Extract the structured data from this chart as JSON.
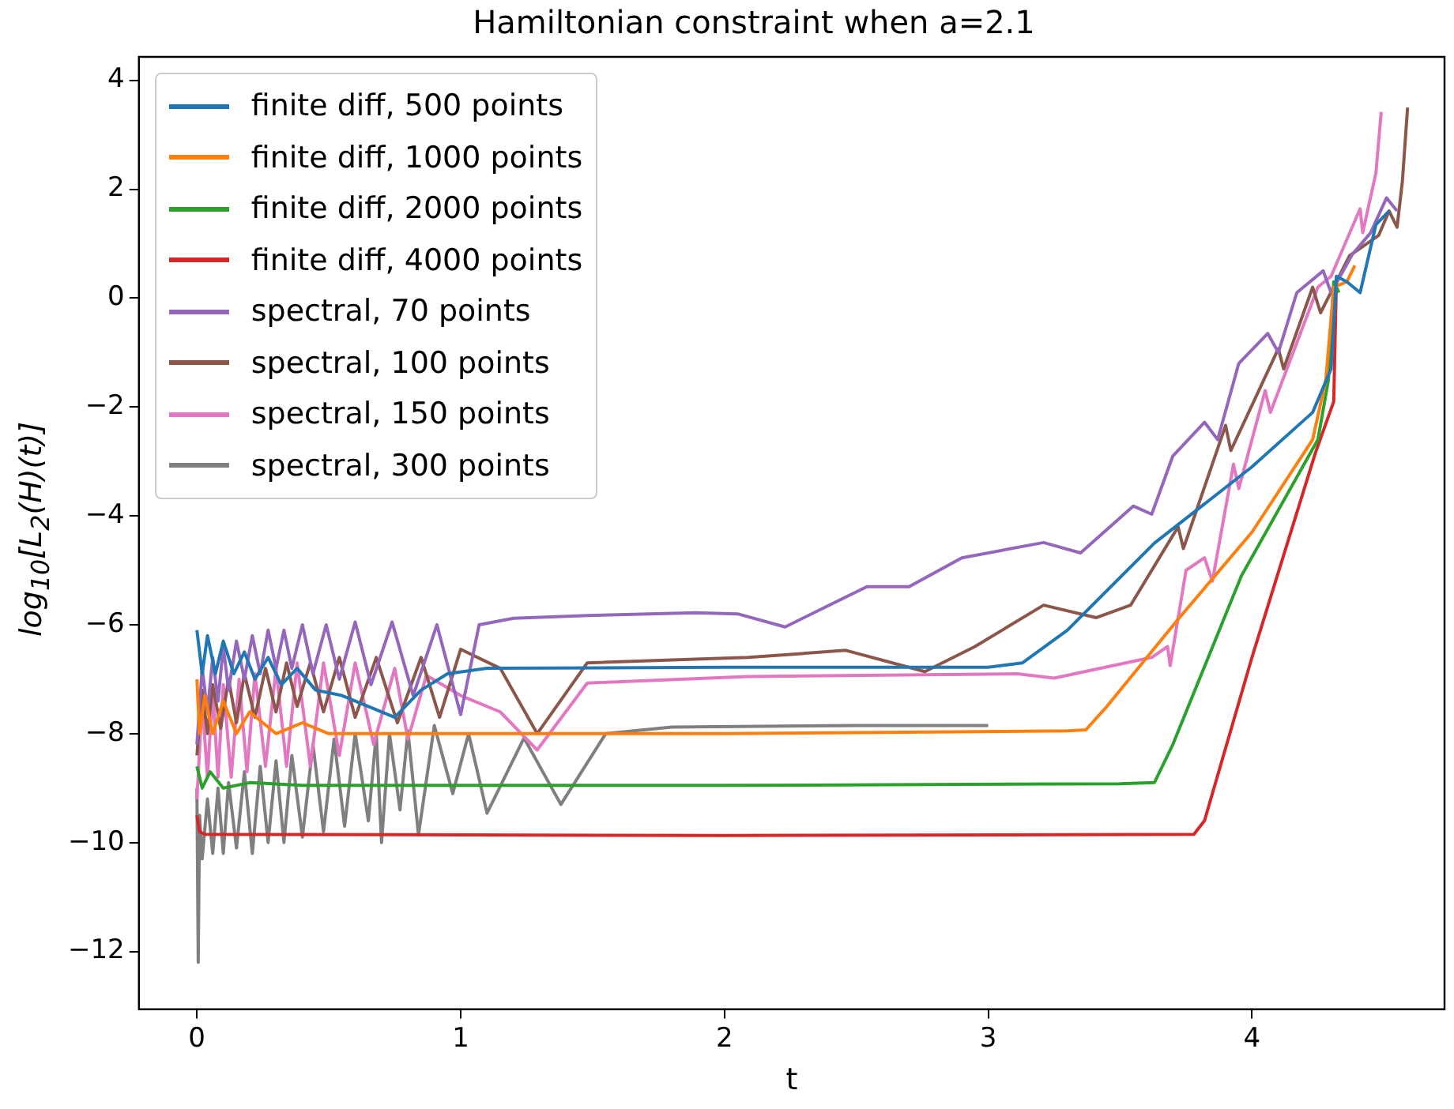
{
  "chart_data": {
    "type": "line",
    "title": "Hamiltonian constraint when a=2.1",
    "xlabel": "t",
    "ylabel": "log$_{10}$[L$_{2}$(H)(t)]",
    "xlim": [
      -0.22,
      4.73
    ],
    "xticks": [
      0,
      1,
      2,
      3,
      4
    ],
    "ylim": [
      -13.06,
      4.43
    ],
    "yticks": [
      -12,
      -10,
      -8,
      -6,
      -4,
      -2,
      0,
      2,
      4
    ],
    "legend": "top left",
    "marker": "none",
    "line_style": "solid",
    "series": [
      {
        "name": "finite diff, 500 points",
        "color": "#1f77b4",
        "x": [
          0,
          0.02,
          0.04,
          0.07,
          0.1,
          0.14,
          0.18,
          0.22,
          0.27,
          0.32,
          0.38,
          0.45,
          0.55,
          0.65,
          0.75,
          0.85,
          0.95,
          1.1,
          2,
          3,
          3.13,
          3.3,
          3.63,
          4,
          4.23,
          4.3,
          4.32,
          4.36,
          4.41,
          4.47,
          4.52
        ],
        "values": [
          -6.1,
          -6.9,
          -6.2,
          -6.9,
          -6.3,
          -6.9,
          -6.5,
          -7,
          -6.6,
          -7.1,
          -6.8,
          -7.2,
          -7.3,
          -7.5,
          -7.7,
          -7.2,
          -6.9,
          -6.8,
          -6.78,
          -6.78,
          -6.7,
          -6.1,
          -4.5,
          -3.1,
          -2.1,
          -1.3,
          0.4,
          0.3,
          0.1,
          1.35,
          1.6
        ]
      },
      {
        "name": "finite diff, 1000 points",
        "color": "#ff7f0e",
        "x": [
          0,
          0.01,
          0.03,
          0.06,
          0.1,
          0.15,
          0.2,
          0.3,
          0.4,
          0.5,
          0.7,
          2,
          3.3,
          3.37,
          3.45,
          3.72,
          4,
          4.23,
          4.28,
          4.31,
          4.36,
          4.39
        ],
        "values": [
          -7,
          -8,
          -7.3,
          -8,
          -7.4,
          -8,
          -7.6,
          -8,
          -7.8,
          -8,
          -8,
          -8,
          -7.95,
          -7.93,
          -7.5,
          -5.9,
          -4.3,
          -2.6,
          -1.5,
          0.2,
          0.3,
          0.6
        ]
      },
      {
        "name": "finite diff, 2000 points",
        "color": "#2ca02c",
        "x": [
          0,
          0.02,
          0.05,
          0.1,
          0.2,
          0.4,
          2,
          3.5,
          3.63,
          3.7,
          3.96,
          4.25,
          4.29,
          4.31,
          4.33
        ],
        "values": [
          -8.6,
          -9,
          -8.7,
          -9,
          -8.9,
          -8.95,
          -8.95,
          -8.92,
          -8.9,
          -8.2,
          -5.1,
          -2.6,
          -1.5,
          0.3,
          0.1
        ]
      },
      {
        "name": "finite diff, 4000 points",
        "color": "#d62728",
        "x": [
          0,
          0.01,
          0.03,
          2,
          3.78,
          3.82,
          4,
          4.24,
          4.31,
          4.32
        ],
        "values": [
          -9.5,
          -9.8,
          -9.85,
          -9.87,
          -9.85,
          -9.6,
          -6.6,
          -2.85,
          -1.9,
          0.3
        ]
      },
      {
        "name": "spectral, 70 points",
        "color": "#9467bd",
        "x": [
          0,
          0.02,
          0.04,
          0.06,
          0.08,
          0.1,
          0.12,
          0.15,
          0.18,
          0.21,
          0.24,
          0.27,
          0.3,
          0.33,
          0.36,
          0.4,
          0.44,
          0.49,
          0.54,
          0.6,
          0.66,
          0.74,
          0.82,
          0.91,
          1,
          1.07,
          1.2,
          1.48,
          1.89,
          2.05,
          2.23,
          2.54,
          2.7,
          2.9,
          3.21,
          3.35,
          3.55,
          3.62,
          3.7,
          3.82,
          3.87,
          3.95,
          4.06,
          4.1,
          4.17,
          4.27,
          4.3,
          4.38,
          4.45,
          4.51,
          4.55
        ],
        "values": [
          -8.2,
          -6.8,
          -7.6,
          -6.6,
          -7.4,
          -6.4,
          -7.2,
          -6.3,
          -7,
          -6.2,
          -6.9,
          -6.1,
          -6.8,
          -6.1,
          -6.8,
          -6,
          -6.9,
          -6,
          -7,
          -5.95,
          -7.1,
          -5.95,
          -7.3,
          -6,
          -7.65,
          -6,
          -5.88,
          -5.83,
          -5.78,
          -5.8,
          -6.04,
          -5.3,
          -5.3,
          -4.77,
          -4.49,
          -4.68,
          -3.82,
          -3.97,
          -2.9,
          -2.28,
          -2.6,
          -1.2,
          -0.65,
          -1,
          0.1,
          0.5,
          0.1,
          0.8,
          1.2,
          1.84,
          1.6
        ]
      },
      {
        "name": "spectral, 100 points",
        "color": "#8c564b",
        "x": [
          0,
          0.02,
          0.04,
          0.06,
          0.09,
          0.12,
          0.15,
          0.18,
          0.22,
          0.26,
          0.3,
          0.34,
          0.38,
          0.43,
          0.48,
          0.54,
          0.6,
          0.68,
          0.76,
          0.85,
          0.92,
          1,
          1.15,
          1.29,
          1.48,
          2.09,
          2.46,
          2.76,
          2.95,
          3.21,
          3.41,
          3.54,
          3.72,
          3.74,
          3.9,
          3.92,
          4.1,
          4.12,
          4.23,
          4.26,
          4.37,
          4.48,
          4.52,
          4.55,
          4.57,
          4.59
        ],
        "values": [
          -8.4,
          -7.2,
          -8,
          -7.1,
          -7.9,
          -7,
          -7.8,
          -6.9,
          -7.7,
          -6.8,
          -7.6,
          -6.7,
          -7.5,
          -6.7,
          -7.6,
          -6.6,
          -7.7,
          -6.6,
          -7.8,
          -6.6,
          -7.7,
          -6.45,
          -6.8,
          -8,
          -6.7,
          -6.6,
          -6.47,
          -6.86,
          -6.4,
          -5.64,
          -5.87,
          -5.64,
          -4.2,
          -4.6,
          -2.34,
          -2.8,
          -0.93,
          -1.3,
          0.2,
          -0.27,
          0.78,
          1.15,
          1.6,
          1.3,
          2.13,
          3.5
        ]
      },
      {
        "name": "spectral, 150 points",
        "color": "#e377c2",
        "x": [
          0,
          0.02,
          0.04,
          0.06,
          0.08,
          0.1,
          0.13,
          0.16,
          0.19,
          0.22,
          0.26,
          0.3,
          0.34,
          0.38,
          0.43,
          0.48,
          0.54,
          0.6,
          0.67,
          0.75,
          0.8,
          0.87,
          1,
          1.15,
          1.29,
          1.48,
          2.09,
          3.11,
          3.25,
          3.62,
          3.68,
          3.69,
          3.75,
          3.82,
          3.85,
          3.93,
          3.95,
          4.05,
          4.07,
          4.25,
          4.3,
          4.41,
          4.42,
          4.47,
          4.49
        ],
        "values": [
          -9.2,
          -7.4,
          -8.8,
          -7.2,
          -8.8,
          -7.1,
          -8.8,
          -7,
          -8.7,
          -6.9,
          -8.6,
          -6.8,
          -8.6,
          -6.7,
          -8.6,
          -6.7,
          -8.4,
          -6.7,
          -8.2,
          -6.8,
          -8.1,
          -6.93,
          -7.3,
          -7.6,
          -8.3,
          -7.07,
          -6.95,
          -6.9,
          -6.98,
          -6.6,
          -6.4,
          -6.75,
          -5,
          -4.77,
          -5.2,
          -3.05,
          -3.5,
          -1.7,
          -2.1,
          0.2,
          0.4,
          1.64,
          1.2,
          2.3,
          3.42
        ]
      },
      {
        "name": "spectral, 300 points",
        "color": "#7f7f7f",
        "x": [
          0,
          0.005,
          0.01,
          0.02,
          0.04,
          0.06,
          0.08,
          0.1,
          0.12,
          0.15,
          0.18,
          0.21,
          0.24,
          0.27,
          0.3,
          0.33,
          0.36,
          0.4,
          0.44,
          0.48,
          0.52,
          0.56,
          0.6,
          0.65,
          0.68,
          0.7,
          0.73,
          0.77,
          0.8,
          0.84,
          0.9,
          0.97,
          1.03,
          1.1,
          1.24,
          1.38,
          1.55,
          1.8,
          2.5,
          3
        ],
        "values": [
          -9,
          -12.2,
          -9.5,
          -10.3,
          -9.2,
          -10.2,
          -9,
          -10.2,
          -8.9,
          -10.1,
          -8.7,
          -10.2,
          -8.6,
          -10,
          -8.5,
          -10,
          -8.4,
          -9.9,
          -8.2,
          -9.8,
          -8.1,
          -9.7,
          -8,
          -9.6,
          -8,
          -10,
          -8,
          -9.4,
          -7.95,
          -9.86,
          -7.85,
          -9.1,
          -8,
          -9.46,
          -8.08,
          -9.3,
          -8,
          -7.88,
          -7.85,
          -7.85
        ]
      }
    ]
  }
}
